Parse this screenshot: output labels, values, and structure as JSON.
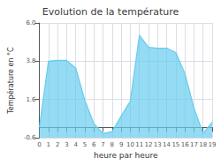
{
  "chart_data": {
    "type": "area",
    "title": "Evolution de la température",
    "xlabel": "heure par heure",
    "ylabel": "Température en °C",
    "x": [
      0,
      1,
      2,
      3,
      4,
      5,
      6,
      7,
      8,
      9,
      10,
      11,
      12,
      13,
      14,
      15,
      16,
      17,
      18,
      19
    ],
    "values": [
      0.0,
      3.8,
      3.85,
      3.85,
      3.4,
      1.55,
      0.2,
      -0.35,
      -0.25,
      0.65,
      1.5,
      5.3,
      4.6,
      4.55,
      4.55,
      4.3,
      3.1,
      1.1,
      -0.35,
      0.3
    ],
    "xlim": [
      0,
      19
    ],
    "xticks": [
      0,
      1,
      2,
      3,
      4,
      5,
      6,
      7,
      8,
      9,
      10,
      11,
      12,
      13,
      14,
      15,
      16,
      17,
      18,
      19
    ],
    "ylim": [
      -0.6,
      6.0
    ],
    "yticks": [
      -0.6,
      1.6,
      3.8,
      {
        "value": 6.0,
        "label": "6.0"
      }
    ],
    "grid": true,
    "color": "#66ccee"
  }
}
